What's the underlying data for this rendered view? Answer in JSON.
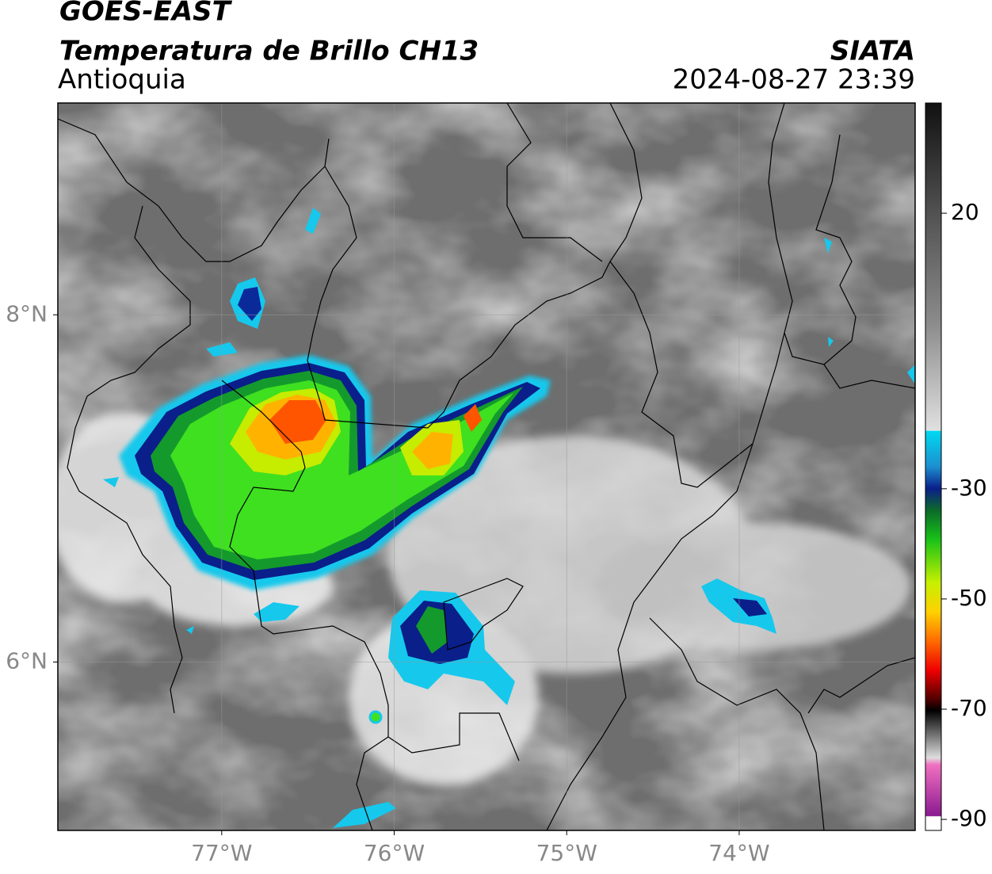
{
  "header": {
    "title": "GOES-EAST",
    "subtitle": "Temperatura de Brillo CH13",
    "region": "Antioquia",
    "agency": "SIATA",
    "timestamp": "2024-08-27 23:39"
  },
  "map": {
    "xlim": [
      -77.95,
      -72.98
    ],
    "ylim": [
      5.03,
      9.22
    ],
    "xticks": [
      {
        "value": -77,
        "label": "77°W"
      },
      {
        "value": -76,
        "label": "76°W"
      },
      {
        "value": -75,
        "label": "75°W"
      },
      {
        "value": -74,
        "label": "74°W"
      }
    ],
    "yticks": [
      {
        "value": 6,
        "label": "6°N"
      },
      {
        "value": 8,
        "label": "8°N"
      }
    ],
    "grid": true
  },
  "colorbar": {
    "lim": [
      -92,
      40
    ],
    "ticks": [
      20,
      -30,
      -50,
      -70,
      -90
    ]
  }
}
